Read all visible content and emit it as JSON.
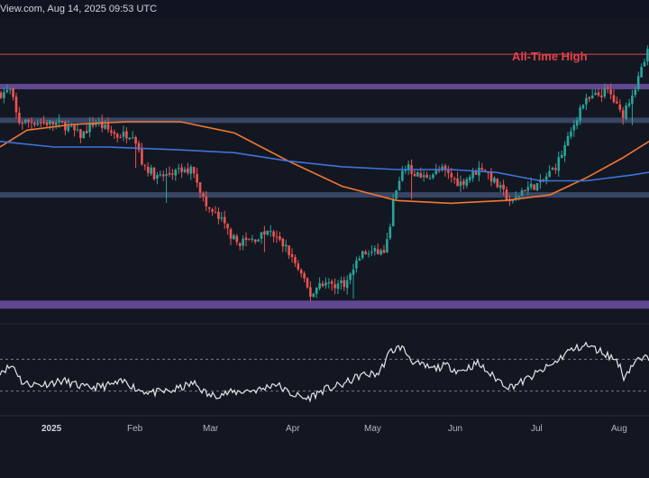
{
  "header": {
    "caption": "View.com, Aug 14, 2025 09:53 UTC"
  },
  "annotations": {
    "all_time_high": "All-Time High"
  },
  "axis": {
    "ticks": [
      "2025",
      "Feb",
      "Mar",
      "Apr",
      "May",
      "Jun",
      "Jul",
      "Aug"
    ]
  },
  "colors": {
    "background": "#131722",
    "bullish": "#26a69a",
    "bearish": "#ef5350",
    "ath_line": "#e5414a",
    "zone_purple": "#6a4e9c",
    "zone_slate": "#3d4a6b",
    "ma_orange": "#f2772f",
    "ma_blue": "#3f73d9",
    "rsi_line": "#e6e6e6"
  },
  "chart_data": {
    "type": "candlestick",
    "title": "",
    "xlabel": "",
    "ylabel": "",
    "price_axis_visible": false,
    "grid": false,
    "x_ticks": [
      "2025",
      "Feb",
      "Mar",
      "Apr",
      "May",
      "Jun",
      "Jul",
      "Aug"
    ],
    "ylim_relative": [
      0,
      100
    ],
    "levels": [
      {
        "name": "All-Time High",
        "value": 91,
        "style": "line"
      },
      {
        "value": 79.5,
        "style": "band-purple"
      },
      {
        "value": 67.5,
        "style": "band-slate"
      },
      {
        "value": 41,
        "style": "band-slate"
      },
      {
        "value": 2,
        "style": "band-purple"
      }
    ],
    "price_path": [
      {
        "x": 0,
        "p": 77
      },
      {
        "x": 12,
        "p": 78
      },
      {
        "x": 20,
        "p": 67
      },
      {
        "x": 40,
        "p": 67
      },
      {
        "x": 70,
        "p": 66
      },
      {
        "x": 90,
        "p": 62
      },
      {
        "x": 105,
        "p": 67
      },
      {
        "x": 130,
        "p": 62
      },
      {
        "x": 148,
        "p": 63
      },
      {
        "x": 158,
        "p": 52
      },
      {
        "x": 175,
        "p": 47
      },
      {
        "x": 195,
        "p": 49
      },
      {
        "x": 215,
        "p": 50
      },
      {
        "x": 228,
        "p": 37
      },
      {
        "x": 245,
        "p": 32
      },
      {
        "x": 262,
        "p": 24
      },
      {
        "x": 280,
        "p": 25
      },
      {
        "x": 298,
        "p": 28
      },
      {
        "x": 318,
        "p": 22
      },
      {
        "x": 330,
        "p": 15
      },
      {
        "x": 345,
        "p": 5
      },
      {
        "x": 355,
        "p": 10
      },
      {
        "x": 370,
        "p": 9
      },
      {
        "x": 385,
        "p": 10
      },
      {
        "x": 400,
        "p": 20
      },
      {
        "x": 428,
        "p": 21
      },
      {
        "x": 437,
        "p": 40
      },
      {
        "x": 450,
        "p": 51
      },
      {
        "x": 468,
        "p": 47
      },
      {
        "x": 490,
        "p": 50
      },
      {
        "x": 510,
        "p": 45
      },
      {
        "x": 535,
        "p": 51
      },
      {
        "x": 550,
        "p": 45
      },
      {
        "x": 568,
        "p": 38
      },
      {
        "x": 580,
        "p": 43
      },
      {
        "x": 600,
        "p": 45
      },
      {
        "x": 618,
        "p": 52
      },
      {
        "x": 632,
        "p": 62
      },
      {
        "x": 645,
        "p": 73
      },
      {
        "x": 660,
        "p": 76
      },
      {
        "x": 675,
        "p": 78
      },
      {
        "x": 690,
        "p": 69
      },
      {
        "x": 705,
        "p": 80
      },
      {
        "x": 720,
        "p": 93
      }
    ],
    "moving_averages": [
      {
        "color": "orange",
        "points": [
          {
            "x": 0,
            "p": 58
          },
          {
            "x": 30,
            "p": 64
          },
          {
            "x": 80,
            "p": 66
          },
          {
            "x": 140,
            "p": 67
          },
          {
            "x": 200,
            "p": 67
          },
          {
            "x": 260,
            "p": 63
          },
          {
            "x": 320,
            "p": 53
          },
          {
            "x": 380,
            "p": 44
          },
          {
            "x": 440,
            "p": 39
          },
          {
            "x": 500,
            "p": 38
          },
          {
            "x": 560,
            "p": 39
          },
          {
            "x": 610,
            "p": 41
          },
          {
            "x": 650,
            "p": 47
          },
          {
            "x": 690,
            "p": 54
          },
          {
            "x": 720,
            "p": 60
          }
        ]
      },
      {
        "color": "blue",
        "points": [
          {
            "x": 0,
            "p": 60
          },
          {
            "x": 60,
            "p": 58
          },
          {
            "x": 120,
            "p": 58
          },
          {
            "x": 200,
            "p": 57
          },
          {
            "x": 260,
            "p": 56
          },
          {
            "x": 320,
            "p": 53
          },
          {
            "x": 380,
            "p": 51
          },
          {
            "x": 440,
            "p": 50
          },
          {
            "x": 500,
            "p": 50
          },
          {
            "x": 550,
            "p": 49
          },
          {
            "x": 600,
            "p": 46
          },
          {
            "x": 650,
            "p": 46
          },
          {
            "x": 700,
            "p": 48
          },
          {
            "x": 720,
            "p": 49
          }
        ]
      }
    ],
    "rsi": {
      "range": [
        0,
        100
      ],
      "bands": [
        70,
        30
      ],
      "path": [
        {
          "x": 0,
          "v": 55
        },
        {
          "x": 15,
          "v": 62
        },
        {
          "x": 25,
          "v": 40
        },
        {
          "x": 45,
          "v": 38
        },
        {
          "x": 70,
          "v": 43
        },
        {
          "x": 95,
          "v": 34
        },
        {
          "x": 115,
          "v": 36
        },
        {
          "x": 140,
          "v": 42
        },
        {
          "x": 152,
          "v": 32
        },
        {
          "x": 170,
          "v": 28
        },
        {
          "x": 190,
          "v": 30
        },
        {
          "x": 215,
          "v": 40
        },
        {
          "x": 232,
          "v": 24
        },
        {
          "x": 250,
          "v": 27
        },
        {
          "x": 270,
          "v": 30
        },
        {
          "x": 290,
          "v": 32
        },
        {
          "x": 305,
          "v": 40
        },
        {
          "x": 320,
          "v": 28
        },
        {
          "x": 340,
          "v": 20
        },
        {
          "x": 360,
          "v": 32
        },
        {
          "x": 380,
          "v": 38
        },
        {
          "x": 400,
          "v": 50
        },
        {
          "x": 420,
          "v": 52
        },
        {
          "x": 433,
          "v": 80
        },
        {
          "x": 445,
          "v": 86
        },
        {
          "x": 460,
          "v": 65
        },
        {
          "x": 480,
          "v": 58
        },
        {
          "x": 495,
          "v": 62
        },
        {
          "x": 510,
          "v": 55
        },
        {
          "x": 530,
          "v": 65
        },
        {
          "x": 545,
          "v": 50
        },
        {
          "x": 565,
          "v": 35
        },
        {
          "x": 580,
          "v": 42
        },
        {
          "x": 600,
          "v": 55
        },
        {
          "x": 615,
          "v": 65
        },
        {
          "x": 630,
          "v": 80
        },
        {
          "x": 650,
          "v": 88
        },
        {
          "x": 670,
          "v": 78
        },
        {
          "x": 685,
          "v": 68
        },
        {
          "x": 692,
          "v": 48
        },
        {
          "x": 705,
          "v": 68
        },
        {
          "x": 720,
          "v": 72
        }
      ]
    }
  }
}
